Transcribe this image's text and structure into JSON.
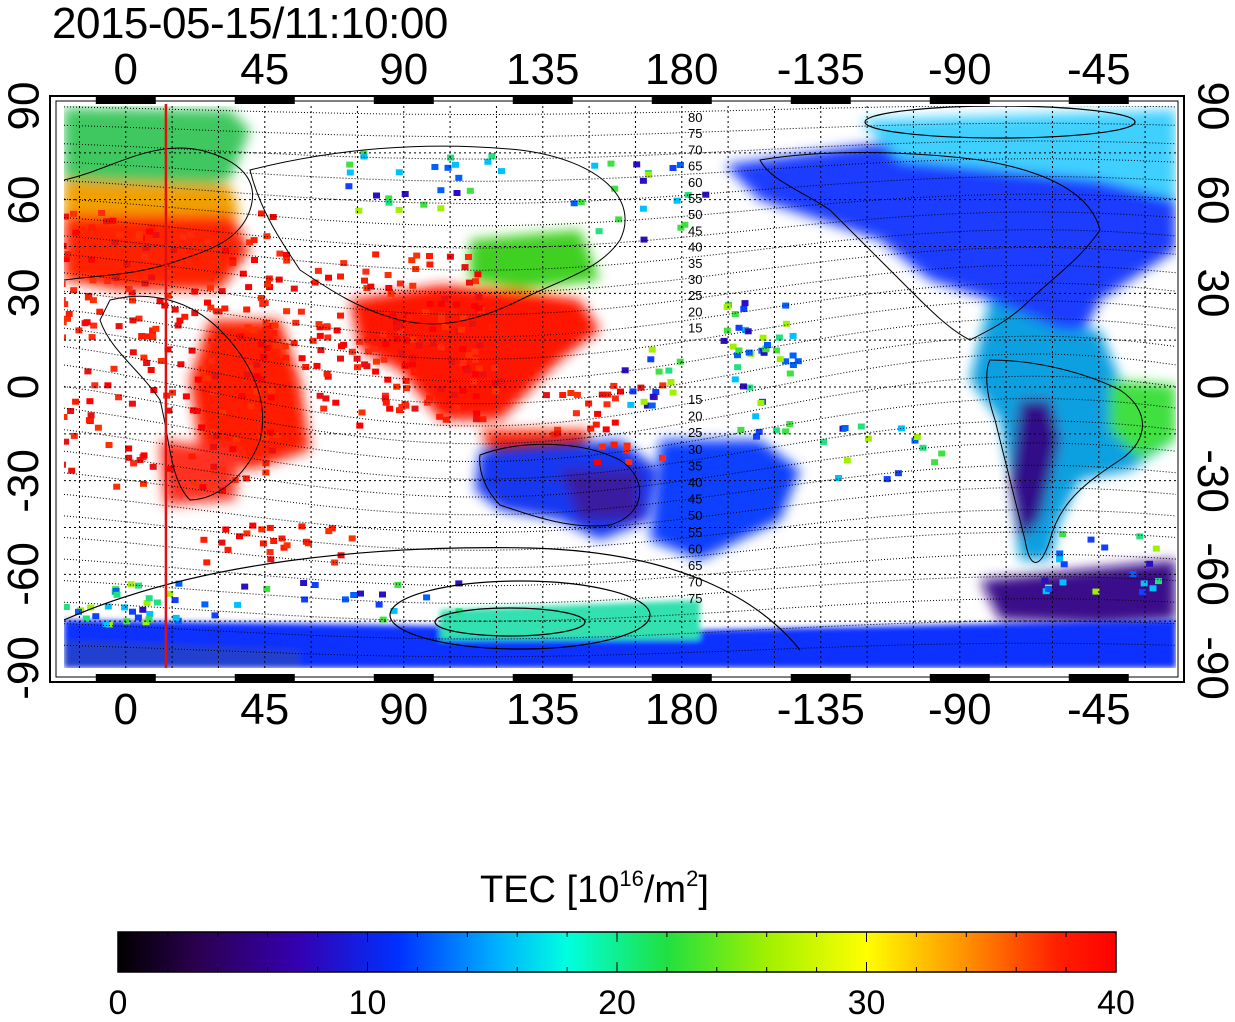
{
  "title": "2015-05-15/11:10:00",
  "map": {
    "longitude_ticks": [
      "0",
      "45",
      "90",
      "135",
      "180",
      "-135",
      "-90",
      "-45"
    ],
    "latitude_ticks": [
      "90",
      "60",
      "30",
      "0",
      "-30",
      "-60",
      "-90"
    ],
    "terminator_longitude": 13,
    "contour_labels": [
      "80",
      "75",
      "70",
      "65",
      "60",
      "55",
      "50",
      "45",
      "40",
      "35",
      "30",
      "25",
      "20",
      "15",
      "15",
      "20",
      "25",
      "30",
      "35",
      "40",
      "45",
      "50",
      "55",
      "60",
      "65",
      "70",
      "75"
    ]
  },
  "colorbar": {
    "label_main": "TEC  [10",
    "label_exp": "16",
    "label_unit": "/m",
    "label_exp2": "2",
    "label_close": "]",
    "ticks": [
      "0",
      "10",
      "20",
      "30",
      "40"
    ],
    "min": 0,
    "max": 40,
    "colors": [
      "#000000",
      "#3a0066",
      "#2a00c8",
      "#0044ff",
      "#00c8ff",
      "#00ffb0",
      "#20e020",
      "#a8f000",
      "#ffff00",
      "#ffa000",
      "#ff3000",
      "#ff0000"
    ]
  },
  "colors": {
    "terminator": "#e01010",
    "frame": "#000000"
  }
}
